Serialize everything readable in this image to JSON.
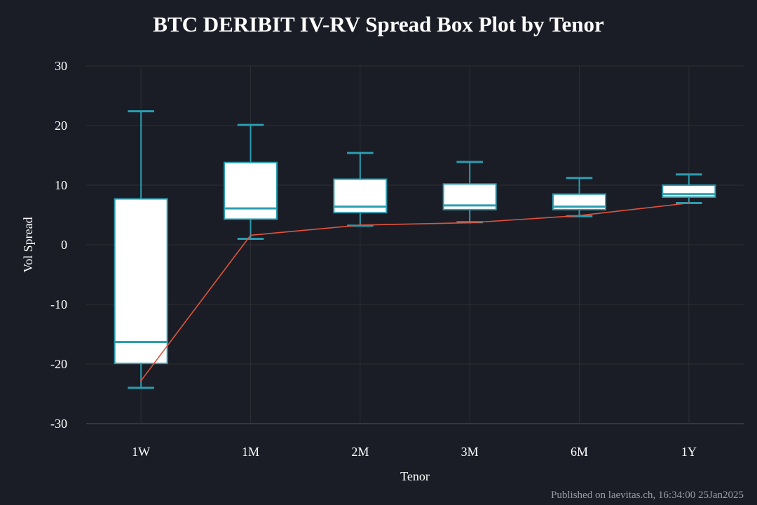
{
  "chart_data": {
    "type": "box",
    "title": "BTC DERIBIT IV-RV Spread Box Plot by Tenor",
    "xlabel": "Tenor",
    "ylabel": "Vol Spread",
    "ylim": [
      -30,
      30
    ],
    "yticks": [
      30,
      20,
      10,
      0,
      -10,
      -20,
      -30
    ],
    "grid": true,
    "categories": [
      "1W",
      "1M",
      "2M",
      "3M",
      "6M",
      "1Y"
    ],
    "boxes": [
      {
        "min": -24.0,
        "q1": -19.9,
        "median": -16.3,
        "q3": 7.7,
        "max": 22.4
      },
      {
        "min": 1.0,
        "q1": 4.3,
        "median": 6.1,
        "q3": 13.8,
        "max": 20.1
      },
      {
        "min": 3.2,
        "q1": 5.4,
        "median": 6.4,
        "q3": 11.0,
        "max": 15.4
      },
      {
        "min": 3.8,
        "q1": 5.9,
        "median": 6.6,
        "q3": 10.2,
        "max": 13.9
      },
      {
        "min": 4.8,
        "q1": 5.9,
        "median": 6.4,
        "q3": 8.5,
        "max": 11.2
      },
      {
        "min": 7.0,
        "q1": 8.0,
        "median": 8.5,
        "q3": 10.0,
        "max": 11.8
      }
    ],
    "line_values": [
      -22.8,
      1.6,
      3.3,
      3.7,
      4.9,
      7.0
    ],
    "colors": {
      "background": "#1b1d26",
      "grid": "#2c2f33",
      "box_fill": "#ffffff",
      "box_stroke": "#2a9db0",
      "line": "#e0533d"
    }
  },
  "footer": "Published on laevitas.ch, 16:34:00 25Jan2025"
}
